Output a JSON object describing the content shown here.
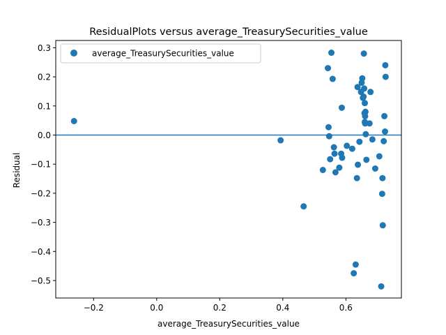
{
  "chart_data": {
    "type": "scatter",
    "title": "ResidualPlots versus average_TreasurySecurities_value",
    "xlabel": "average_TreasurySecurities_value",
    "ylabel": "Residual",
    "xlim": [
      -0.32,
      0.776
    ],
    "ylim": [
      -0.56,
      0.325
    ],
    "xticks": [
      -0.2,
      0.0,
      0.2,
      0.4,
      0.6
    ],
    "xtick_labels": [
      "−0.2",
      "0.0",
      "0.2",
      "0.4",
      "0.6"
    ],
    "yticks": [
      -0.5,
      -0.4,
      -0.3,
      -0.2,
      -0.1,
      0.0,
      0.1,
      0.2,
      0.3
    ],
    "ytick_labels": [
      "−0.5",
      "−0.4",
      "−0.3",
      "−0.2",
      "−0.1",
      "0.0",
      "0.1",
      "0.2",
      "0.3"
    ],
    "grid": false,
    "legend_position": "top-left",
    "reference_line_y": 0.0,
    "color": "#1f77b4",
    "series": [
      {
        "name": "average_TreasurySecurities_value",
        "x": [
          -0.262,
          0.393,
          0.466,
          0.527,
          0.543,
          0.545,
          0.547,
          0.55,
          0.554,
          0.558,
          0.562,
          0.564,
          0.567,
          0.579,
          0.585,
          0.587,
          0.588,
          0.603,
          0.62,
          0.625,
          0.631,
          0.635,
          0.637,
          0.638,
          0.643,
          0.648,
          0.65,
          0.652,
          0.654,
          0.656,
          0.657,
          0.658,
          0.659,
          0.66,
          0.66,
          0.661,
          0.661,
          0.662,
          0.663,
          0.665,
          0.675,
          0.678,
          0.684,
          0.693,
          0.706,
          0.712,
          0.715,
          0.716,
          0.717,
          0.72,
          0.722,
          0.724,
          0.725,
          0.726
        ],
        "y": [
          0.048,
          -0.018,
          -0.245,
          -0.12,
          0.23,
          0.027,
          -0.004,
          -0.083,
          0.283,
          0.193,
          -0.042,
          -0.064,
          -0.128,
          -0.112,
          -0.064,
          0.094,
          -0.078,
          -0.037,
          -0.047,
          -0.475,
          -0.445,
          -0.148,
          0.165,
          -0.102,
          -0.023,
          0.148,
          0.18,
          0.195,
          0.128,
          0.132,
          0.28,
          0.16,
          0.075,
          0.11,
          0.045,
          0.065,
          0.04,
          0.08,
          0.003,
          -0.085,
          0.04,
          0.148,
          -0.015,
          -0.115,
          -0.073,
          -0.52,
          -0.202,
          -0.148,
          -0.31,
          -0.021,
          0.065,
          0.012,
          0.24,
          0.2
        ]
      }
    ]
  }
}
